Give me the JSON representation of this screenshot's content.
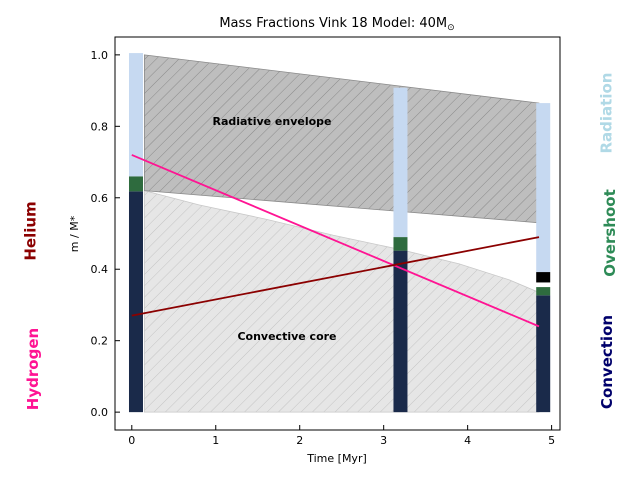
{
  "chart_data": {
    "type": "line",
    "title": "Mass Fractions Vink 18 Model: 40M",
    "title_suffix_symbol": "⊙",
    "xlabel": "Time [Myr]",
    "ylabel": "m / M*",
    "xlim": [
      -0.2,
      5.1
    ],
    "ylim": [
      -0.05,
      1.05
    ],
    "x_ticks": [
      "0",
      "1",
      "2",
      "3",
      "4",
      "5"
    ],
    "y_ticks": [
      "0.0",
      "0.2",
      "0.4",
      "0.6",
      "0.8",
      "1.0"
    ],
    "grid": false,
    "annotations": {
      "envelope": "Radiative envelope",
      "core": "Convective core"
    },
    "regions": {
      "radiative_envelope": {
        "x": [
          0.15,
          4.85
        ],
        "top": [
          1.0,
          0.865
        ],
        "bottom": [
          0.62,
          0.53
        ],
        "fill": "#bebebe"
      },
      "convective_core": {
        "x": [
          0.15,
          0.8,
          1.6,
          2.4,
          3.2,
          3.9,
          4.5,
          4.85
        ],
        "top": [
          0.62,
          0.58,
          0.54,
          0.495,
          0.455,
          0.415,
          0.37,
          0.335
        ],
        "fill": "#e6e6e6"
      }
    },
    "columns": [
      {
        "time": 0.05,
        "convection": [
          0.0,
          0.618
        ],
        "overshoot": [
          0.618,
          0.66
        ],
        "radiation": [
          0.66,
          1.005
        ],
        "extra": null
      },
      {
        "time": 3.2,
        "convection": [
          0.0,
          0.452
        ],
        "overshoot": [
          0.452,
          0.49
        ],
        "radiation": [
          0.49,
          0.908
        ],
        "extra": null
      },
      {
        "time": 4.9,
        "convection": [
          0.0,
          0.327
        ],
        "overshoot": [
          0.327,
          0.35
        ],
        "radiation": [
          0.392,
          0.865
        ],
        "extra": [
          0.363,
          0.392
        ]
      }
    ],
    "series": [
      {
        "name": "Hydrogen",
        "x": [
          0.0,
          4.85
        ],
        "y": [
          0.72,
          0.24
        ],
        "color": "#ff1493"
      },
      {
        "name": "Helium",
        "x": [
          0.0,
          4.85
        ],
        "y": [
          0.27,
          0.49
        ],
        "color": "#8b0000"
      }
    ],
    "side_labels": {
      "left": [
        {
          "text": "Helium",
          "color": "#8b0000"
        },
        {
          "text": "Hydrogen",
          "color": "#ff1493"
        }
      ],
      "right": [
        {
          "text": "Radiation",
          "color": "#b0d9e6"
        },
        {
          "text": "Overshoot",
          "color": "#2e8b57"
        },
        {
          "text": "Convection",
          "color": "#00006b"
        }
      ]
    },
    "colors": {
      "convection": "#1a2a4a",
      "overshoot": "#2e6b3e",
      "radiation": "#c6d9f1",
      "extra": "#000000"
    }
  }
}
